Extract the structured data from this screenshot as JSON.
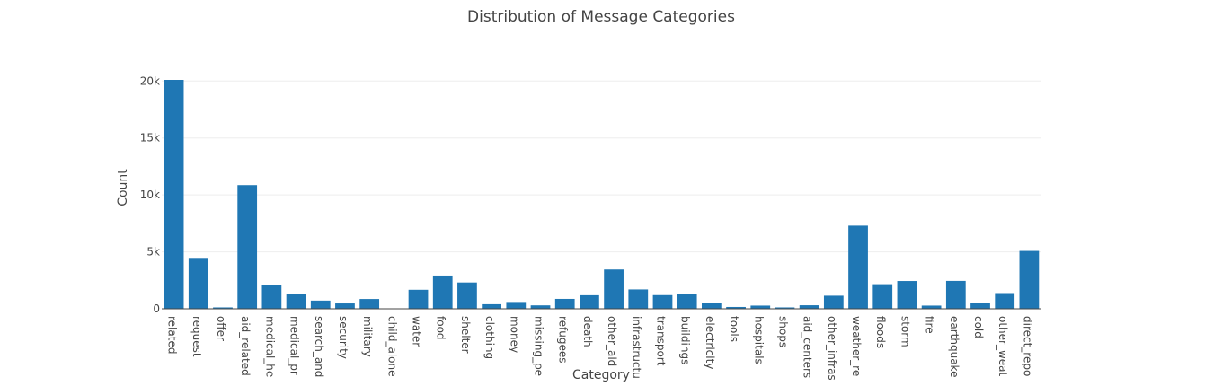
{
  "chart_data": {
    "type": "bar",
    "title": "Distribution of Message Categories",
    "xlabel": "Category",
    "ylabel": "Count",
    "ylim": [
      0,
      20100
    ],
    "yticks": [
      0,
      5000,
      10000,
      15000,
      20000
    ],
    "ytick_labels": [
      "0",
      "5k",
      "10k",
      "15k",
      "20k"
    ],
    "grid": true,
    "legend": "none",
    "bar_color": "#1f77b4",
    "categories": [
      "related",
      "request",
      "offer",
      "aid_related",
      "medical_he",
      "medical_pr",
      "search_and",
      "security",
      "military",
      "child_alone",
      "water",
      "food",
      "shelter",
      "clothing",
      "money",
      "missing_pe",
      "refugees",
      "death",
      "other_aid",
      "infrastructu",
      "transport",
      "buildings",
      "electricity",
      "tools",
      "hospitals",
      "shops",
      "aid_centers",
      "other_infras",
      "weather_re",
      "floods",
      "storm",
      "fire",
      "earthquake",
      "cold",
      "other_weat",
      "direct_repo"
    ],
    "values": [
      20100,
      4470,
      120,
      10860,
      2080,
      1310,
      720,
      470,
      860,
      0,
      1670,
      2920,
      2310,
      400,
      600,
      300,
      870,
      1190,
      3450,
      1700,
      1200,
      1330,
      530,
      160,
      280,
      120,
      310,
      1150,
      7300,
      2160,
      2440,
      280,
      2450,
      530,
      1380,
      5080
    ]
  }
}
